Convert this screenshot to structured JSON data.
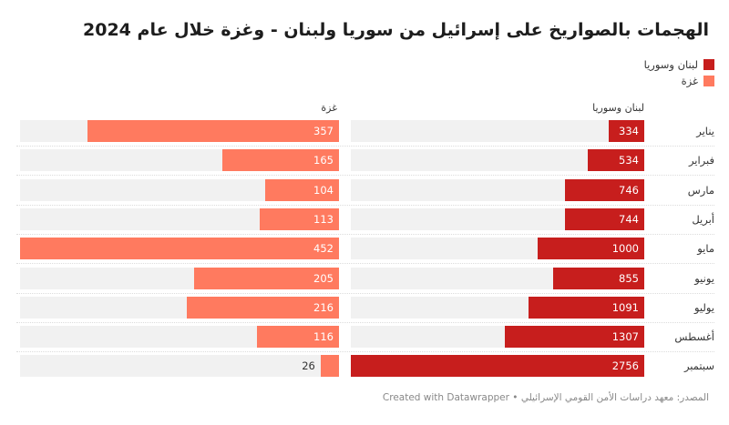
{
  "chart_data": {
    "type": "bar",
    "orientation": "horizontal",
    "title": "الهجمات بالصواريخ على إسرائيل من سوريا ولبنان - وغزة خلال عام 2024",
    "categories": [
      "يناير",
      "فبراير",
      "مارس",
      "أبريل",
      "مايو",
      "يونيو",
      "يوليو",
      "أغسطس",
      "سبتمبر"
    ],
    "series": [
      {
        "name": "لبنان وسوريا",
        "color": "#c71e1d",
        "values": [
          334,
          534,
          746,
          744,
          1000,
          855,
          1091,
          1307,
          2756
        ],
        "max": 2756
      },
      {
        "name": "غزة",
        "color": "#ff7a5f",
        "values": [
          357,
          165,
          104,
          113,
          452,
          205,
          216,
          116,
          26
        ],
        "max": 452
      }
    ],
    "legend": {
      "position": "top-right",
      "entries": [
        {
          "label": "لبنان وسوريا",
          "color": "#c71e1d"
        },
        {
          "label": "غزة",
          "color": "#ff7a5f"
        }
      ]
    },
    "column_headers": [
      "لبنان وسوريا",
      "غزة"
    ],
    "grid": false
  },
  "footer": {
    "source": "المصدر: معهد دراسات الأمن القومي الإسرائيلي",
    "separator": "•",
    "credit": "Created with Datawrapper"
  }
}
